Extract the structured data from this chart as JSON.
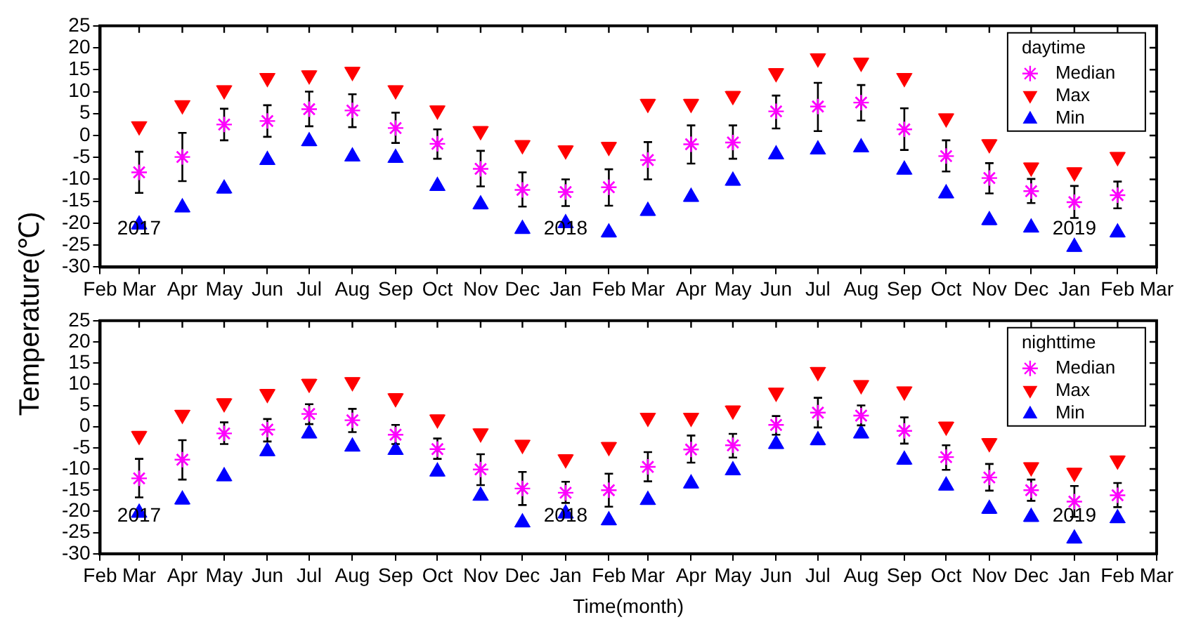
{
  "chart_data": [
    {
      "type": "scatter",
      "ylabel": "Temperature(℃)",
      "legend_title": "daytime",
      "legend": "top right",
      "grid": false,
      "x": [
        "2017-03",
        "2017-04",
        "2017-05",
        "2017-06",
        "2017-07",
        "2017-08",
        "2017-09",
        "2017-10",
        "2017-11",
        "2017-12",
        "2018-01",
        "2018-02",
        "2018-03",
        "2018-04",
        "2018-05",
        "2018-06",
        "2018-07",
        "2018-08",
        "2018-09",
        "2018-10",
        "2018-11",
        "2018-12",
        "2019-01",
        "2019-02"
      ],
      "xlim": [
        "2017-02",
        "2019-03"
      ],
      "xticks": [
        {
          "value": "2017-02",
          "label": "Feb"
        },
        {
          "value": "2017-03",
          "label": "Mar"
        },
        {
          "value": "2017-04",
          "label": "Apr"
        },
        {
          "value": "2017-05",
          "label": "May"
        },
        {
          "value": "2017-06",
          "label": "Jun"
        },
        {
          "value": "2017-07",
          "label": "Jul"
        },
        {
          "value": "2017-08",
          "label": "Aug"
        },
        {
          "value": "2017-09",
          "label": "Sep"
        },
        {
          "value": "2017-10",
          "label": "Oct"
        },
        {
          "value": "2017-11",
          "label": "Nov"
        },
        {
          "value": "2017-12",
          "label": "Dec"
        },
        {
          "value": "2018-01",
          "label": "Jan"
        },
        {
          "value": "2018-02",
          "label": "Feb"
        },
        {
          "value": "2018-03",
          "label": "Mar"
        },
        {
          "value": "2018-04",
          "label": "Apr"
        },
        {
          "value": "2018-05",
          "label": "May"
        },
        {
          "value": "2018-06",
          "label": "Jun"
        },
        {
          "value": "2018-07",
          "label": "Jul"
        },
        {
          "value": "2018-08",
          "label": "Aug"
        },
        {
          "value": "2018-09",
          "label": "Sep"
        },
        {
          "value": "2018-10",
          "label": "Oct"
        },
        {
          "value": "2018-11",
          "label": "Nov"
        },
        {
          "value": "2018-12",
          "label": "Dec"
        },
        {
          "value": "2019-01",
          "label": "Jan"
        },
        {
          "value": "2019-02",
          "label": "Feb"
        },
        {
          "value": "2019-03",
          "label": "Mar"
        }
      ],
      "ylim": [
        -30,
        25
      ],
      "yticks": [
        -30,
        -25,
        -20,
        -15,
        -10,
        -5,
        0,
        5,
        10,
        15,
        20,
        25
      ],
      "annotations": [
        "2017",
        "2018",
        "2019"
      ],
      "series": [
        {
          "name": "Median",
          "color": "#ff00ff",
          "marker": "cross",
          "values": [
            -8.4,
            -4.9,
            2.5,
            3.3,
            6.0,
            5.7,
            1.7,
            -1.9,
            -7.6,
            -12.4,
            -12.9,
            -11.8,
            -5.6,
            -2.0,
            -1.6,
            5.5,
            6.6,
            7.5,
            1.4,
            -4.7,
            -9.7,
            -12.7,
            -15.2,
            -13.6
          ],
          "errors": [
            [
              -13.1,
              -3.7
            ],
            [
              -10.4,
              0.6
            ],
            [
              -1.1,
              6.1
            ],
            [
              -0.3,
              6.9
            ],
            [
              2.1,
              10.0
            ],
            [
              1.9,
              9.4
            ],
            [
              -1.7,
              5.2
            ],
            [
              -5.3,
              1.4
            ],
            [
              -11.6,
              -3.5
            ],
            [
              -16.2,
              -8.4
            ],
            [
              -16.1,
              -10.0
            ],
            [
              -16.0,
              -7.7
            ],
            [
              -10.0,
              -1.5
            ],
            [
              -6.4,
              2.3
            ],
            [
              -5.3,
              2.3
            ],
            [
              1.6,
              9.1
            ],
            [
              1.0,
              12.0
            ],
            [
              3.4,
              11.5
            ],
            [
              -3.3,
              6.2
            ],
            [
              -8.2,
              -1.1
            ],
            [
              -13.2,
              -6.3
            ],
            [
              -15.4,
              -9.9
            ],
            [
              -18.8,
              -11.5
            ],
            [
              -16.6,
              -10.5
            ]
          ]
        },
        {
          "name": "Max",
          "color": "#ff0000",
          "marker": "triangle",
          "values": [
            2.1,
            6.9,
            10.3,
            13.1,
            13.7,
            14.5,
            10.3,
            5.7,
            1.0,
            -2.2,
            -3.4,
            -2.6,
            7.2,
            7.2,
            9.0,
            14.2,
            17.6,
            16.6,
            13.1,
            3.9,
            -2.0,
            -7.3,
            -8.4,
            -4.9
          ]
        },
        {
          "name": "Min",
          "color": "#0000ff",
          "marker": "triangle",
          "values": [
            -20.3,
            -16.4,
            -12.1,
            -5.6,
            -1.3,
            -4.8,
            -5.1,
            -11.5,
            -15.7,
            -21.3,
            -20.0,
            -22.1,
            -17.2,
            -14.0,
            -10.3,
            -4.3,
            -3.2,
            -2.7,
            -7.8,
            -13.2,
            -19.3,
            -21.0,
            -25.4,
            -22.1
          ]
        }
      ]
    },
    {
      "type": "scatter",
      "xlabel": "Time(month)",
      "legend_title": "nighttime",
      "legend": "top right",
      "grid": false,
      "x": [
        "2017-03",
        "2017-04",
        "2017-05",
        "2017-06",
        "2017-07",
        "2017-08",
        "2017-09",
        "2017-10",
        "2017-11",
        "2017-12",
        "2018-01",
        "2018-02",
        "2018-03",
        "2018-04",
        "2018-05",
        "2018-06",
        "2018-07",
        "2018-08",
        "2018-09",
        "2018-10",
        "2018-11",
        "2018-12",
        "2019-01",
        "2019-02"
      ],
      "xlim": [
        "2017-02",
        "2019-03"
      ],
      "xticks": [
        {
          "value": "2017-02",
          "label": "Feb"
        },
        {
          "value": "2017-03",
          "label": "Mar"
        },
        {
          "value": "2017-04",
          "label": "Apr"
        },
        {
          "value": "2017-05",
          "label": "May"
        },
        {
          "value": "2017-06",
          "label": "Jun"
        },
        {
          "value": "2017-07",
          "label": "Jul"
        },
        {
          "value": "2017-08",
          "label": "Aug"
        },
        {
          "value": "2017-09",
          "label": "Sep"
        },
        {
          "value": "2017-10",
          "label": "Oct"
        },
        {
          "value": "2017-11",
          "label": "Nov"
        },
        {
          "value": "2017-12",
          "label": "Dec"
        },
        {
          "value": "2018-01",
          "label": "Jan"
        },
        {
          "value": "2018-02",
          "label": "Feb"
        },
        {
          "value": "2018-03",
          "label": "Mar"
        },
        {
          "value": "2018-04",
          "label": "Apr"
        },
        {
          "value": "2018-05",
          "label": "May"
        },
        {
          "value": "2018-06",
          "label": "Jun"
        },
        {
          "value": "2018-07",
          "label": "Jul"
        },
        {
          "value": "2018-08",
          "label": "Aug"
        },
        {
          "value": "2018-09",
          "label": "Sep"
        },
        {
          "value": "2018-10",
          "label": "Oct"
        },
        {
          "value": "2018-11",
          "label": "Nov"
        },
        {
          "value": "2018-12",
          "label": "Dec"
        },
        {
          "value": "2019-01",
          "label": "Jan"
        },
        {
          "value": "2019-02",
          "label": "Feb"
        },
        {
          "value": "2019-03",
          "label": "Mar"
        }
      ],
      "ylim": [
        -30,
        25
      ],
      "yticks": [
        -30,
        -25,
        -20,
        -15,
        -10,
        -5,
        0,
        5,
        10,
        15,
        20,
        25
      ],
      "annotations": [
        "2017",
        "2018",
        "2019"
      ],
      "series": [
        {
          "name": "Median",
          "color": "#ff00ff",
          "marker": "cross",
          "values": [
            -12.2,
            -7.8,
            -1.6,
            -0.7,
            3.0,
            1.5,
            -1.9,
            -5.3,
            -10.1,
            -14.6,
            -15.6,
            -15.0,
            -9.5,
            -5.4,
            -4.4,
            0.4,
            3.3,
            2.6,
            -1.0,
            -7.2,
            -12.0,
            -15.0,
            -17.7,
            -16.2
          ],
          "errors": [
            [
              -16.7,
              -7.6
            ],
            [
              -12.5,
              -3.2
            ],
            [
              -4.1,
              1.0
            ],
            [
              -3.5,
              1.8
            ],
            [
              0.6,
              5.3
            ],
            [
              -1.3,
              4.2
            ],
            [
              -4.1,
              0.4
            ],
            [
              -7.6,
              -2.8
            ],
            [
              -13.8,
              -6.5
            ],
            [
              -18.5,
              -10.7
            ],
            [
              -18.0,
              -13.0
            ],
            [
              -18.9,
              -11.1
            ],
            [
              -12.9,
              -6.0
            ],
            [
              -8.5,
              -2.1
            ],
            [
              -7.3,
              -1.7
            ],
            [
              -1.9,
              2.5
            ],
            [
              -0.2,
              6.8
            ],
            [
              0.3,
              5.0
            ],
            [
              -4.0,
              2.2
            ],
            [
              -10.2,
              -4.4
            ],
            [
              -15.1,
              -8.8
            ],
            [
              -17.5,
              -12.5
            ],
            [
              -21.3,
              -14.0
            ],
            [
              -19.0,
              -13.3
            ]
          ]
        },
        {
          "name": "Max",
          "color": "#ff0000",
          "marker": "triangle",
          "values": [
            -2.2,
            2.8,
            5.5,
            7.7,
            10.1,
            10.5,
            6.7,
            1.7,
            -1.6,
            -4.3,
            -7.7,
            -4.8,
            2.1,
            2.1,
            3.8,
            8.0,
            12.9,
            9.8,
            8.3,
            0.0,
            -3.9,
            -9.6,
            -10.9,
            -8.0
          ]
        },
        {
          "name": "Min",
          "color": "#0000ff",
          "marker": "triangle",
          "values": [
            -20.3,
            -17.2,
            -11.7,
            -5.8,
            -1.6,
            -4.7,
            -5.5,
            -10.6,
            -16.3,
            -22.6,
            -20.5,
            -22.1,
            -17.3,
            -13.4,
            -10.3,
            -4.1,
            -3.2,
            -1.6,
            -7.8,
            -13.9,
            -19.4,
            -21.3,
            -26.4,
            -21.6
          ]
        }
      ]
    }
  ]
}
